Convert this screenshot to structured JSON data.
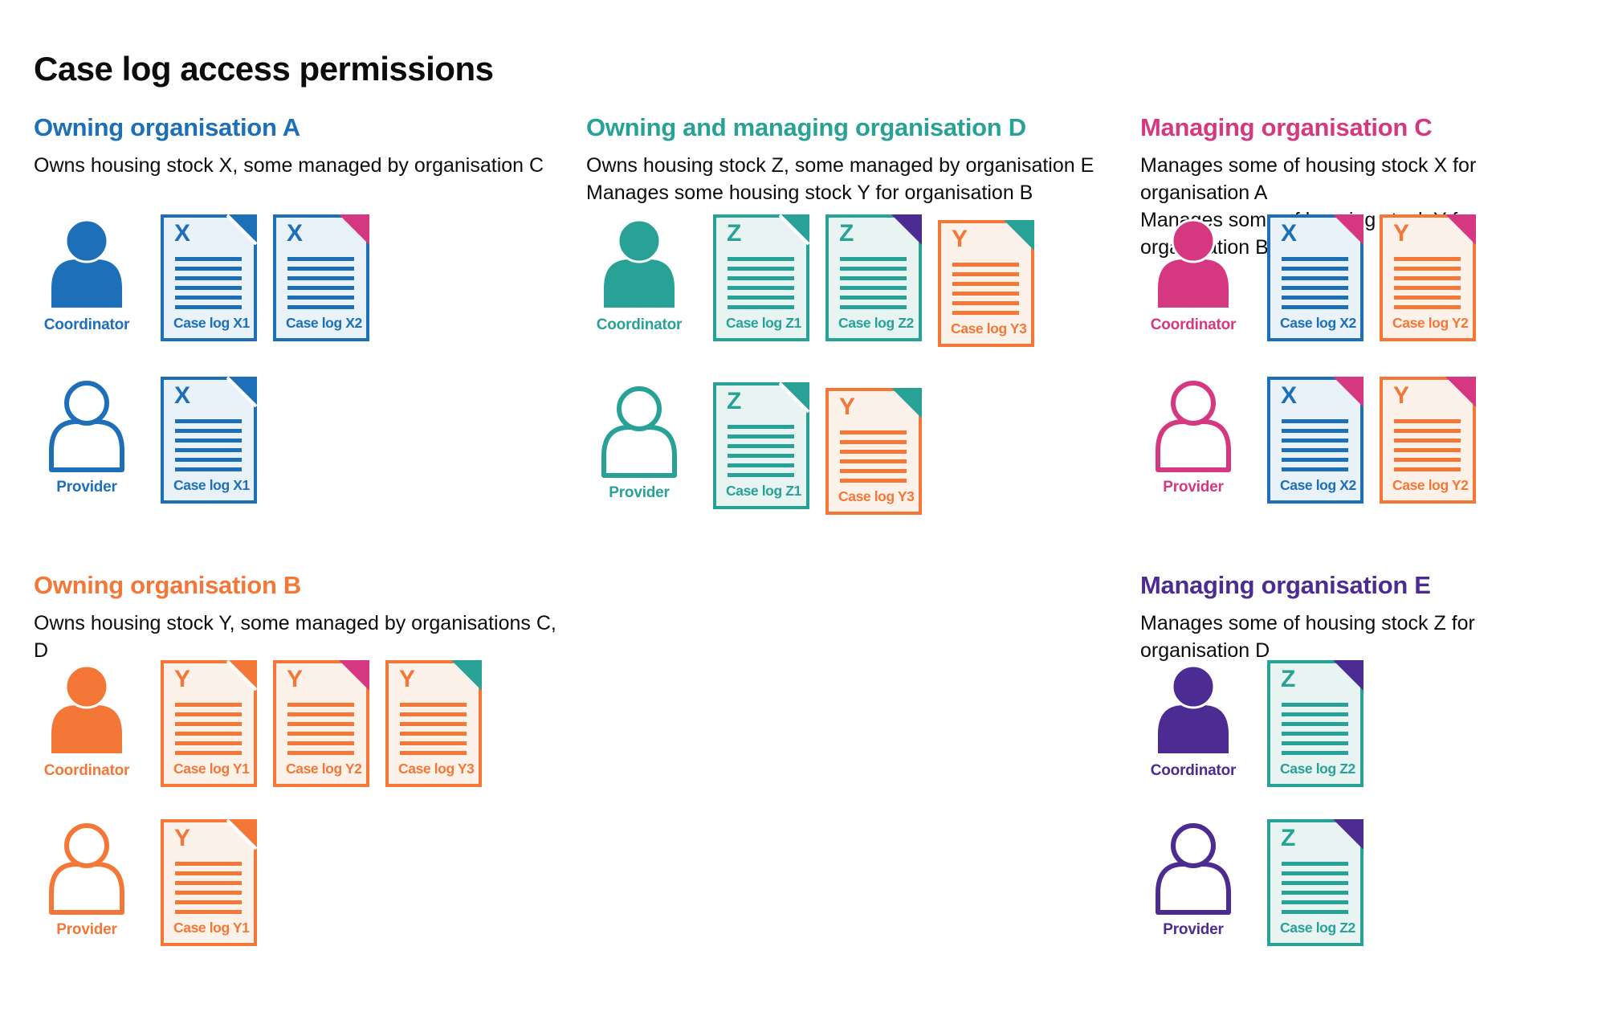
{
  "title": "Case log access permissions",
  "roles": {
    "coordinator": "Coordinator",
    "provider": "Provider"
  },
  "palette": {
    "blue": "#1d70b8",
    "teal": "#28a197",
    "pink": "#d53880",
    "orange": "#f47738",
    "purple": "#4c2c92",
    "text": "#0b0c0c",
    "tint_blue": "#e9f1f9",
    "tint_teal": "#e7f4f2",
    "tint_orange": "#fdf2ea"
  },
  "sections": [
    {
      "id": "a",
      "band": 1,
      "title": "Owning organisation A",
      "color": "blue",
      "subtitle": [
        "Owns housing stock X, some managed by organisation C"
      ],
      "rows": [
        {
          "role": "coordinator",
          "docs": [
            {
              "letter": "X",
              "label": "Case log X1",
              "doc_color": "blue",
              "fold_color": "blue"
            },
            {
              "letter": "X",
              "label": "Case log X2",
              "doc_color": "blue",
              "fold_color": "pink"
            }
          ]
        },
        {
          "role": "provider",
          "docs": [
            {
              "letter": "X",
              "label": "Case log X1",
              "doc_color": "blue",
              "fold_color": "blue"
            }
          ]
        }
      ]
    },
    {
      "id": "d",
      "band": 1,
      "title": "Owning and managing organisation D",
      "color": "teal",
      "subtitle": [
        "Owns housing stock Z, some managed by organisation E",
        "Manages some housing stock Y for organisation B"
      ],
      "rows": [
        {
          "role": "coordinator",
          "docs": [
            {
              "letter": "Z",
              "label": "Case log Z1",
              "doc_color": "teal",
              "fold_color": "teal"
            },
            {
              "letter": "Z",
              "label": "Case log Z2",
              "doc_color": "teal",
              "fold_color": "purple"
            },
            {
              "letter": "Y",
              "label": "Case log Y3",
              "doc_color": "orange",
              "fold_color": "teal",
              "offset": true
            }
          ]
        },
        {
          "role": "provider",
          "docs": [
            {
              "letter": "Z",
              "label": "Case log Z1",
              "doc_color": "teal",
              "fold_color": "teal"
            },
            {
              "letter": "Y",
              "label": "Case log Y3",
              "doc_color": "orange",
              "fold_color": "teal",
              "offset": true
            }
          ]
        }
      ]
    },
    {
      "id": "c",
      "band": 1,
      "title": "Managing organisation C",
      "color": "pink",
      "subtitle": [
        "Manages some of housing stock X for organisation A",
        "Manages some of housing stock Y for organisation B"
      ],
      "rows": [
        {
          "role": "coordinator",
          "docs": [
            {
              "letter": "X",
              "label": "Case log X2",
              "doc_color": "blue",
              "fold_color": "pink"
            },
            {
              "letter": "Y",
              "label": "Case log Y2",
              "doc_color": "orange",
              "fold_color": "pink"
            }
          ]
        },
        {
          "role": "provider",
          "docs": [
            {
              "letter": "X",
              "label": "Case log X2",
              "doc_color": "blue",
              "fold_color": "pink"
            },
            {
              "letter": "Y",
              "label": "Case log Y2",
              "doc_color": "orange",
              "fold_color": "pink"
            }
          ]
        }
      ]
    },
    {
      "id": "b",
      "band": 2,
      "title": "Owning organisation B",
      "color": "orange",
      "subtitle": [
        "Owns housing stock Y, some managed by organisations C, D"
      ],
      "rows": [
        {
          "role": "coordinator",
          "docs": [
            {
              "letter": "Y",
              "label": "Case log Y1",
              "doc_color": "orange",
              "fold_color": "orange"
            },
            {
              "letter": "Y",
              "label": "Case log Y2",
              "doc_color": "orange",
              "fold_color": "pink"
            },
            {
              "letter": "Y",
              "label": "Case log Y3",
              "doc_color": "orange",
              "fold_color": "teal"
            }
          ]
        },
        {
          "role": "provider",
          "docs": [
            {
              "letter": "Y",
              "label": "Case log Y1",
              "doc_color": "orange",
              "fold_color": "orange"
            }
          ]
        }
      ]
    },
    {
      "id": "e",
      "band": 2,
      "title": "Managing organisation E",
      "color": "purple",
      "subtitle": [
        "Manages some of housing stock Z for organisation D"
      ],
      "rows": [
        {
          "role": "coordinator",
          "docs": [
            {
              "letter": "Z",
              "label": "Case log Z2",
              "doc_color": "teal",
              "fold_color": "purple"
            }
          ]
        },
        {
          "role": "provider",
          "docs": [
            {
              "letter": "Z",
              "label": "Case log Z2",
              "doc_color": "teal",
              "fold_color": "purple"
            }
          ]
        }
      ]
    }
  ]
}
